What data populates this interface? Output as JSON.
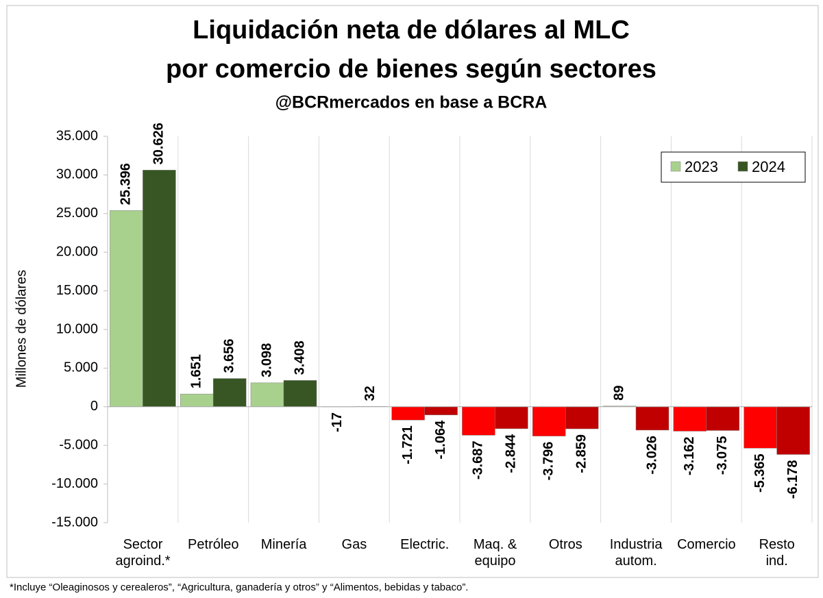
{
  "chart_data": {
    "type": "bar",
    "title": "Liquidación neta de dólares al MLC",
    "title_line2": "por comercio de bienes según sectores",
    "subtitle": "@BCRmercados en base a BCRA",
    "ylabel": "Millones de dólares",
    "footnote": "*Incluye “Oleaginosos y cerealeros”, “Agricultura, ganadería y otros” y “Alimentos, bebidas y tabaco”.",
    "categories": [
      "Sector\nagroind.*",
      "Petróleo",
      "Minería",
      "Gas",
      "Electric.",
      "Maq. &\nequipo",
      "Otros",
      "Industria\nautom.",
      "Comercio",
      "Resto\nind."
    ],
    "series": [
      {
        "name": "2023",
        "color": "#a9d18e",
        "negative_color": "#ff0000",
        "values": [
          25396,
          1651,
          3098,
          -17,
          -1721,
          -3687,
          -3796,
          89,
          -3162,
          -5365
        ],
        "value_labels": [
          "25.396",
          "1.651",
          "3.098",
          "-17",
          "-1.721",
          "-3.687",
          "-3.796",
          "89",
          "-3.162",
          "-5.365"
        ]
      },
      {
        "name": "2024",
        "color": "#375623",
        "negative_color": "#c00000",
        "values": [
          30626,
          3656,
          3408,
          32,
          -1064,
          -2844,
          -2859,
          -3026,
          -3075,
          -6178
        ],
        "value_labels": [
          "30.626",
          "3.656",
          "3.408",
          "32",
          "-1.064",
          "-2.844",
          "-2.859",
          "-3.026",
          "-3.075",
          "-6.178"
        ]
      }
    ],
    "ylim": [
      -15000,
      35000
    ],
    "yticks": [
      {
        "value": -15000,
        "label": "-15.000"
      },
      {
        "value": -10000,
        "label": "-10.000"
      },
      {
        "value": -5000,
        "label": "-5.000"
      },
      0,
      {
        "value": 5000,
        "label": "5.000"
      },
      {
        "value": 10000,
        "label": "10.000"
      },
      {
        "value": 15000,
        "label": "15.000"
      },
      {
        "value": 20000,
        "label": "20.000"
      },
      {
        "value": 25000,
        "label": "25.000"
      },
      {
        "value": 30000,
        "label": "30.000"
      },
      {
        "value": 35000,
        "label": "35.000"
      }
    ],
    "legend": "upper right"
  }
}
